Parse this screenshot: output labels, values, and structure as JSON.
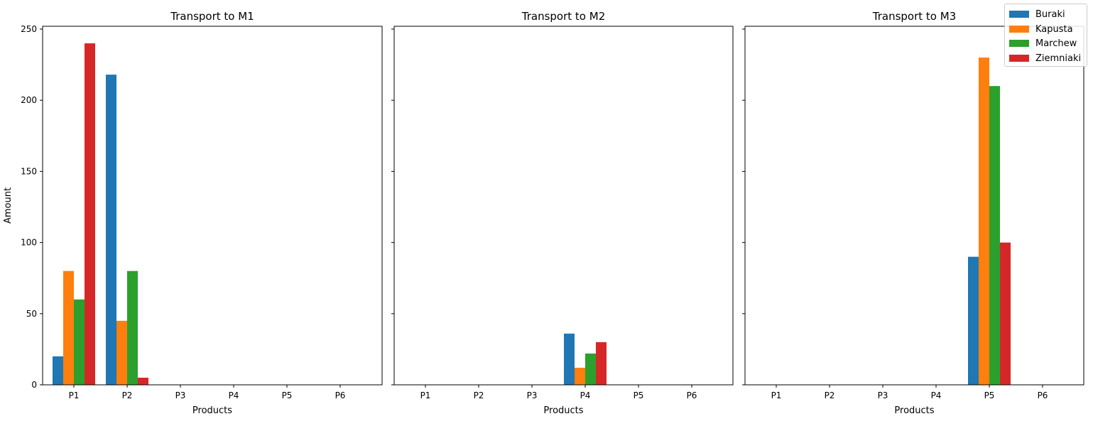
{
  "chart_data": {
    "type": "bar",
    "shared_y": true,
    "ylabel": "Amount",
    "ylim": [
      0,
      252
    ],
    "yticks": [
      0,
      50,
      100,
      150,
      200,
      250
    ],
    "categories": [
      "P1",
      "P2",
      "P3",
      "P4",
      "P5",
      "P6"
    ],
    "series_colors": {
      "Buraki": "#1f77b4",
      "Kapusta": "#ff7f0e",
      "Marchew": "#2ca02c",
      "Ziemniaki": "#d62728"
    },
    "legend": {
      "placement": "top-right",
      "entries": [
        "Buraki",
        "Kapusta",
        "Marchew",
        "Ziemniaki"
      ]
    },
    "panels": [
      {
        "title": "Transport to M1",
        "xlabel": "Products",
        "series": [
          {
            "name": "Buraki",
            "values": [
              20,
              218,
              0,
              0,
              0,
              0
            ]
          },
          {
            "name": "Kapusta",
            "values": [
              80,
              45,
              0,
              0,
              0,
              0
            ]
          },
          {
            "name": "Marchew",
            "values": [
              60,
              80,
              0,
              0,
              0,
              0
            ]
          },
          {
            "name": "Ziemniaki",
            "values": [
              240,
              5,
              0,
              0,
              0,
              0
            ]
          }
        ]
      },
      {
        "title": "Transport to M2",
        "xlabel": "Products",
        "series": [
          {
            "name": "Buraki",
            "values": [
              0,
              0,
              0,
              36,
              0,
              0
            ]
          },
          {
            "name": "Kapusta",
            "values": [
              0,
              0,
              0,
              12,
              0,
              0
            ]
          },
          {
            "name": "Marchew",
            "values": [
              0,
              0,
              0,
              22,
              0,
              0
            ]
          },
          {
            "name": "Ziemniaki",
            "values": [
              0,
              0,
              0,
              30,
              0,
              0
            ]
          }
        ]
      },
      {
        "title": "Transport to M3",
        "xlabel": "Products",
        "series": [
          {
            "name": "Buraki",
            "values": [
              0,
              0,
              0,
              0,
              90,
              0
            ]
          },
          {
            "name": "Kapusta",
            "values": [
              0,
              0,
              0,
              0,
              230,
              0
            ]
          },
          {
            "name": "Marchew",
            "values": [
              0,
              0,
              0,
              0,
              210,
              0
            ]
          },
          {
            "name": "Ziemniaki",
            "values": [
              0,
              0,
              0,
              0,
              100,
              0
            ]
          }
        ]
      }
    ]
  }
}
